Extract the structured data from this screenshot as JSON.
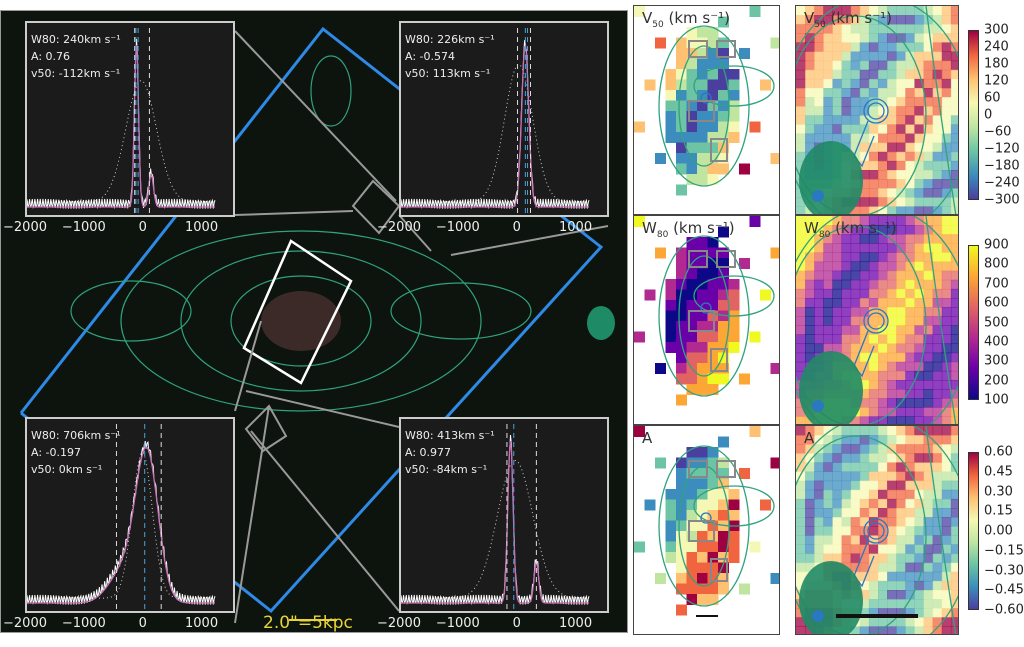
{
  "figure": {
    "scale_label": "2.0\"=5kpc",
    "x_ticks": [
      "−2000",
      "−1000",
      "0",
      "1000"
    ],
    "x_tick_values": [
      -2000,
      -1000,
      0,
      1000
    ]
  },
  "chart_data": [
    {
      "type": "line",
      "title": "spectrum-top-left",
      "xlim": [
        -2000,
        1500
      ],
      "w80": "W80: 240km s⁻¹",
      "A": "A: 0.76",
      "v50": "v50: -112km s⁻¹",
      "w80_value": 240,
      "A_value": 0.76,
      "v50_value": -112,
      "components": [
        {
          "center": -140,
          "sigma": 35,
          "amp": 1.0
        },
        {
          "center": 110,
          "sigma": 40,
          "amp": 0.2
        }
      ],
      "dotted": {
        "center": -60,
        "sigma": 260,
        "amp": 0.75
      },
      "white_dashes": [
        -170,
        80
      ],
      "blue_dashes": [
        -150,
        -112
      ]
    },
    {
      "type": "line",
      "title": "spectrum-top-right",
      "xlim": [
        -2000,
        1500
      ],
      "w80": "W80: 226km s⁻¹",
      "A": "A: -0.574",
      "v50": "v50: 113km s⁻¹",
      "w80_value": 226,
      "A_value": -0.574,
      "v50_value": 113,
      "components": [
        {
          "center": 110,
          "sigma": 60,
          "amp": 1.0
        }
      ],
      "dotted": {
        "center": 0,
        "sigma": 240,
        "amp": 0.85
      },
      "white_dashes": [
        -20,
        200
      ],
      "blue_dashes": [
        113,
        150
      ]
    },
    {
      "type": "line",
      "title": "spectrum-bottom-left",
      "xlim": [
        -2000,
        1500
      ],
      "w80": "W80: 706km s⁻¹",
      "A": "A: -0.197",
      "v50": "v50: 0km s⁻¹",
      "w80_value": 706,
      "A_value": -0.197,
      "v50_value": 0,
      "components": [
        {
          "center": 40,
          "sigma": 190,
          "amp": 0.9
        },
        {
          "center": -350,
          "sigma": 250,
          "amp": 0.2
        }
      ],
      "dotted": {
        "center": -40,
        "sigma": 170,
        "amp": 0.9
      },
      "white_dashes": [
        -480,
        280
      ],
      "blue_dashes": [
        0
      ]
    },
    {
      "type": "line",
      "title": "spectrum-bottom-right",
      "xlim": [
        -2000,
        1500
      ],
      "w80": "W80: 413km s⁻¹",
      "A": "A: 0.977",
      "v50": "v50: -84km s⁻¹",
      "w80_value": 413,
      "A_value": 0.977,
      "v50_value": -84,
      "components": [
        {
          "center": -140,
          "sigma": 45,
          "amp": 1.0
        },
        {
          "center": 300,
          "sigma": 40,
          "amp": 0.25
        }
      ],
      "dotted": {
        "center": -60,
        "sigma": 300,
        "amp": 0.85
      },
      "white_dashes": [
        -200,
        300
      ],
      "blue_dashes": [
        -84
      ]
    }
  ],
  "maps": {
    "rows": [
      {
        "label_main": "V",
        "label_sub": "50",
        "label_unit": " (km s⁻¹)",
        "colorbar": [
          "300",
          "240",
          "180",
          "120",
          "60",
          "0",
          "−60",
          "−120",
          "−180",
          "−240",
          "−300"
        ],
        "colors": [
          "#4a3f9f",
          "#3c8dbd",
          "#6cc4a4",
          "#bfe5a0",
          "#f5f8b4",
          "#fdc171",
          "#f0653f",
          "#9e0142"
        ]
      },
      {
        "label_main": "W",
        "label_sub": "80",
        "label_unit": " (km s⁻¹)",
        "colorbar": [
          "900",
          "800",
          "700",
          "600",
          "500",
          "400",
          "300",
          "200",
          "100"
        ],
        "colors": [
          "#0d0887",
          "#6a00a8",
          "#b12a90",
          "#e16462",
          "#fca636",
          "#f0f921"
        ]
      },
      {
        "label_main": "A",
        "label_sub": "",
        "label_unit": "",
        "colorbar": [
          "0.60",
          "0.45",
          "0.30",
          "0.15",
          "0.00",
          "−0.15",
          "−0.30",
          "−0.45",
          "−0.60"
        ],
        "colors": [
          "#4a3f9f",
          "#3c8dbd",
          "#6cc4a4",
          "#bfe5a0",
          "#f5f8b4",
          "#fdc171",
          "#f0653f",
          "#9e0142"
        ]
      }
    ]
  }
}
